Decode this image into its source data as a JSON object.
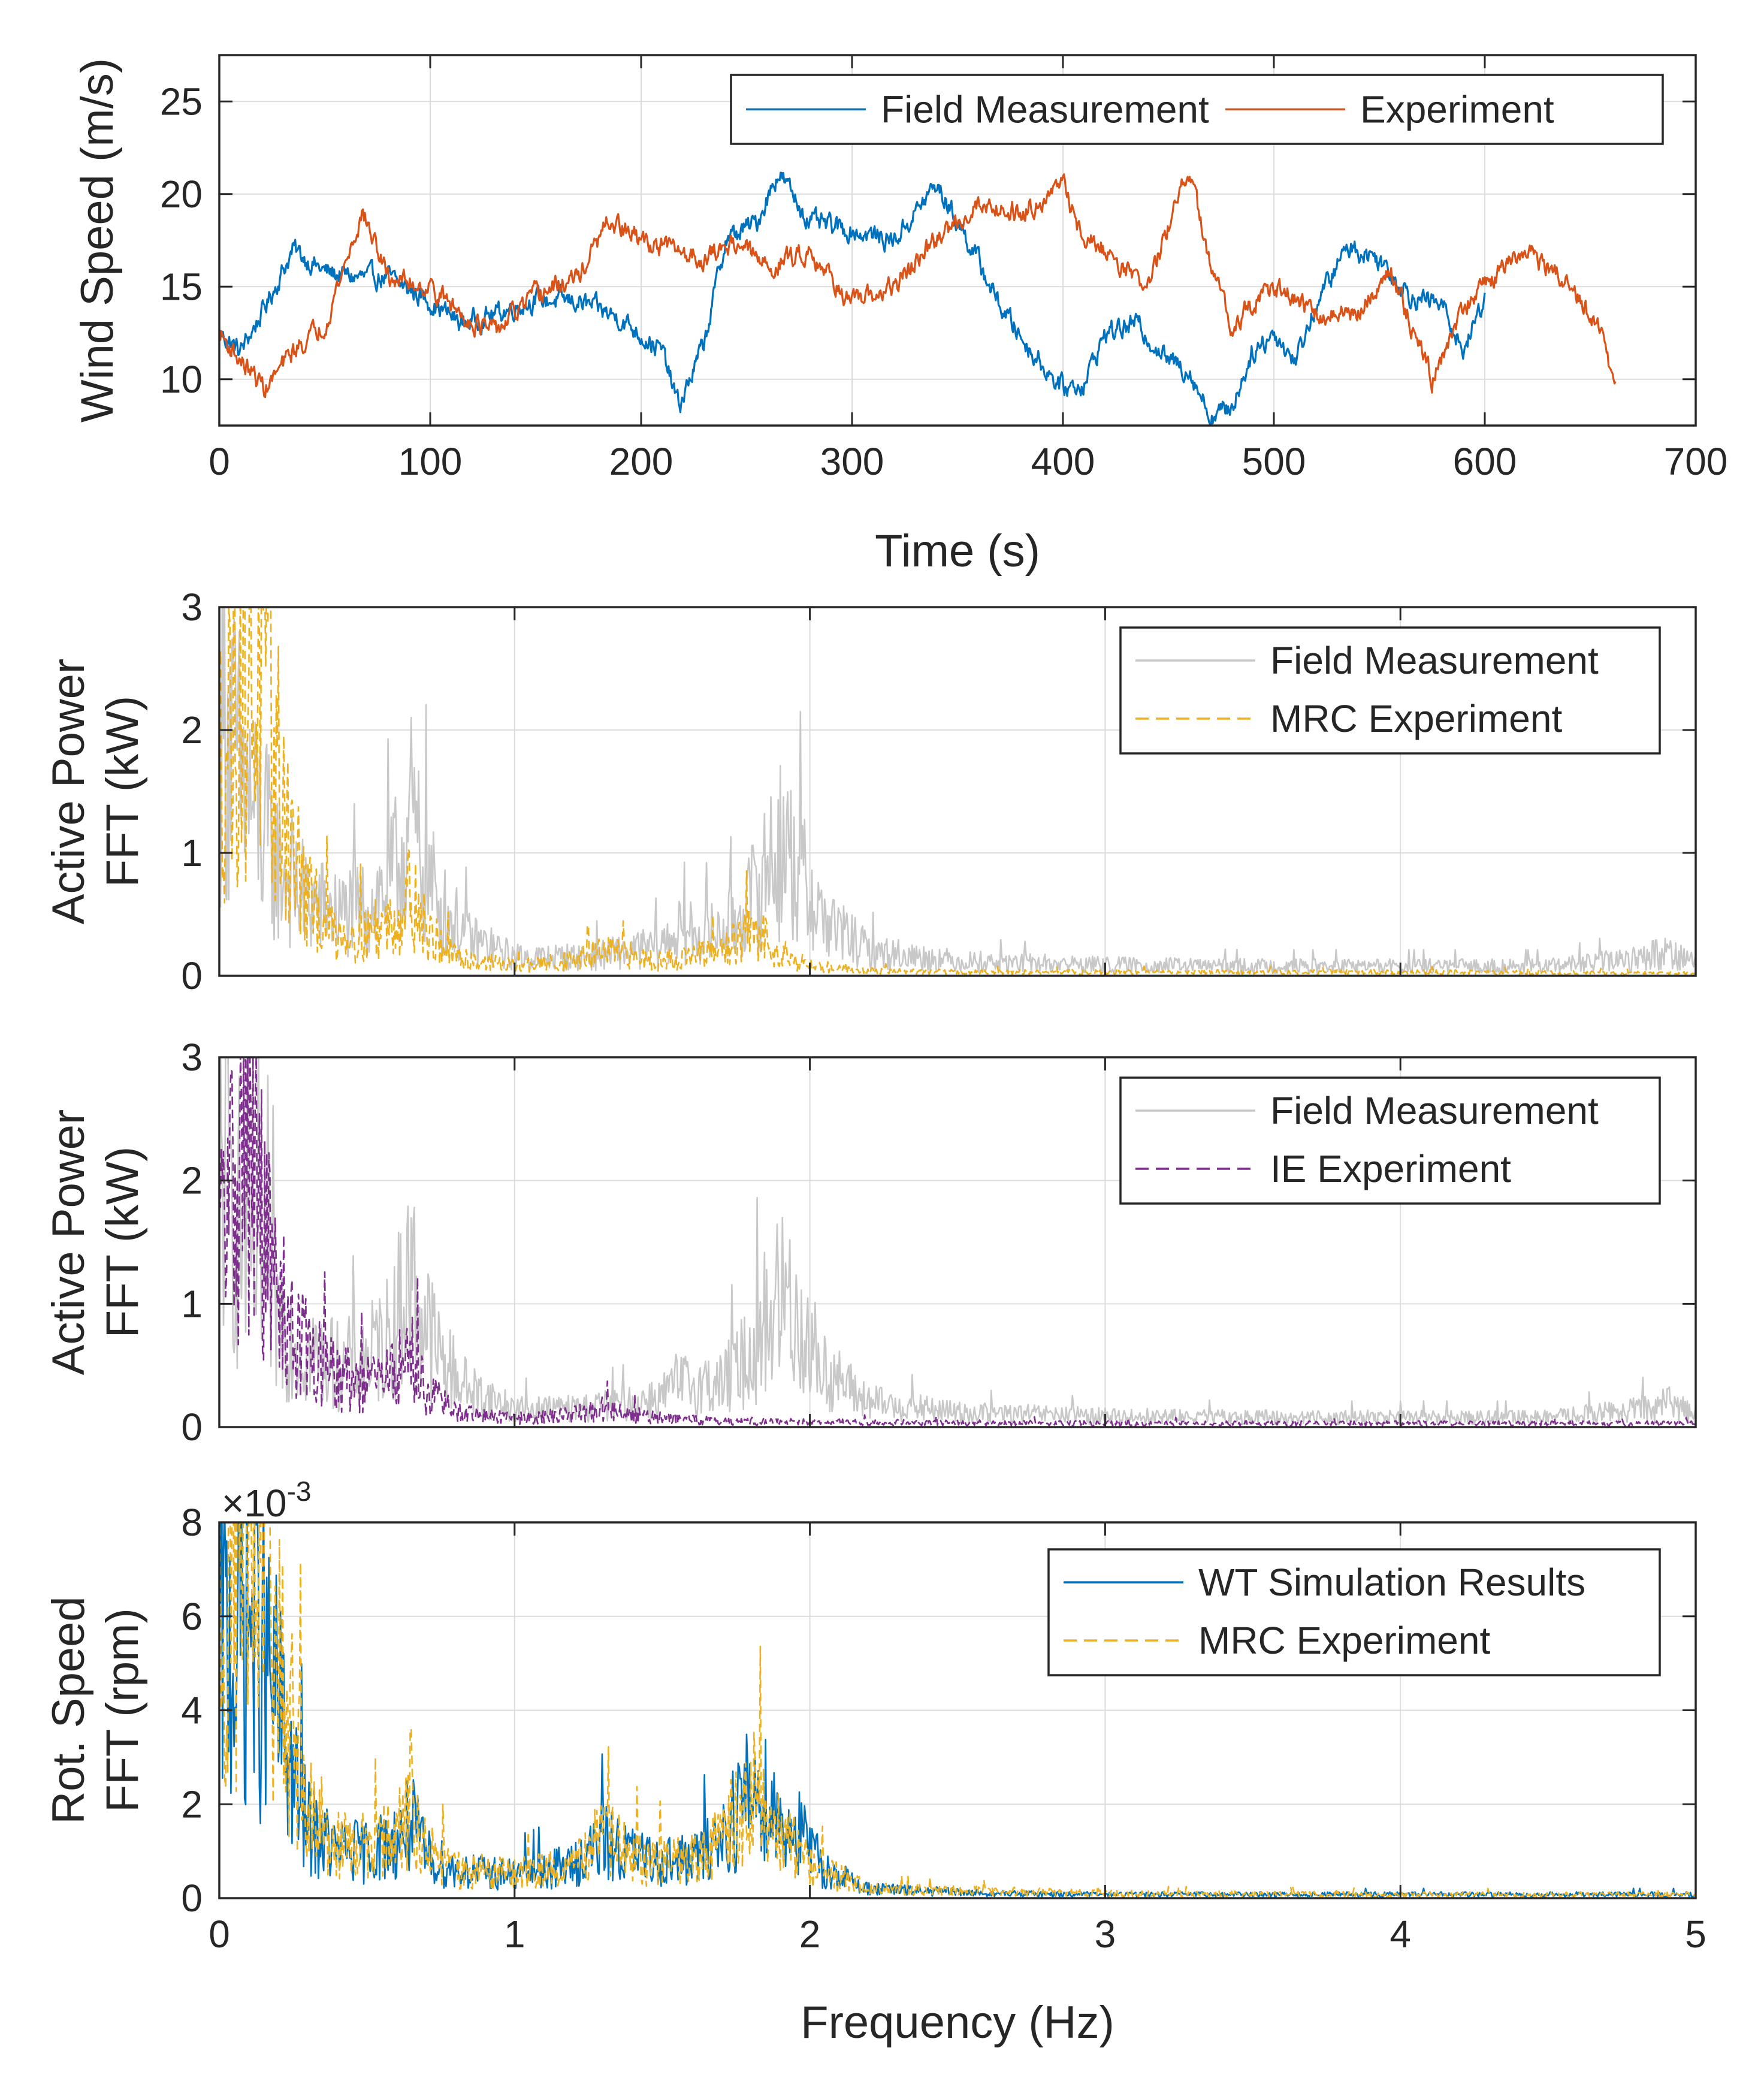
{
  "colors": {
    "blue": "#0072BD",
    "orange": "#D95319",
    "yellow": "#EDB120",
    "purple": "#7E2F8E",
    "gray": "#C8C8C8",
    "axis": "#262626"
  },
  "chart_data": [
    {
      "type": "line",
      "id": "wind",
      "xlabel": "Time (s)",
      "ylabel": [
        "Wind Speed (m/s)"
      ],
      "xlim": [
        0,
        700
      ],
      "ylim": [
        7.5,
        27.5
      ],
      "xticks": [
        0,
        100,
        200,
        300,
        400,
        500,
        600,
        700
      ],
      "yticks": [
        10,
        15,
        20,
        25
      ],
      "grid": true,
      "legend": {
        "placement": "top-right",
        "layout": "horizontal"
      },
      "series": [
        {
          "name": "Field Measurement",
          "color": "blue",
          "style": "solid",
          "noise": 0.45,
          "x": [
            0,
            10,
            20,
            35,
            50,
            65,
            80,
            100,
            115,
            130,
            150,
            170,
            190,
            210,
            218,
            230,
            240,
            255,
            265,
            280,
            300,
            320,
            340,
            355,
            370,
            385,
            400,
            410,
            420,
            435,
            450,
            460,
            470,
            480,
            490,
            500,
            510,
            520,
            535,
            550,
            565,
            580,
            590,
            600
          ],
          "y": [
            12.5,
            11.5,
            13.5,
            17.0,
            15.8,
            15.5,
            15.5,
            14.2,
            13.0,
            13.5,
            14.3,
            14.2,
            13.3,
            11.5,
            8.5,
            12.0,
            17.5,
            18.5,
            21.2,
            18.5,
            18.0,
            17.5,
            20.5,
            17.5,
            14.0,
            11.5,
            9.5,
            9.8,
            12.5,
            13.0,
            11.0,
            10.5,
            8.0,
            8.5,
            11.5,
            12.5,
            11.0,
            14.0,
            17.2,
            16.5,
            14.5,
            14.0,
            11.5,
            14.5
          ]
        },
        {
          "name": "Experiment",
          "color": "orange",
          "style": "solid",
          "noise": 0.45,
          "x": [
            0,
            10,
            22,
            35,
            50,
            68,
            80,
            100,
            115,
            130,
            150,
            170,
            185,
            200,
            215,
            230,
            245,
            260,
            280,
            300,
            320,
            340,
            360,
            380,
            400,
            410,
            420,
            440,
            460,
            470,
            480,
            500,
            520,
            540,
            555,
            575,
            590,
            605,
            620,
            640,
            655,
            662
          ],
          "y": [
            12.5,
            11.0,
            9.5,
            11.5,
            13.0,
            19.0,
            15.5,
            15.0,
            13.5,
            12.5,
            14.5,
            15.5,
            18.5,
            17.5,
            17.0,
            16.5,
            17.5,
            16.0,
            17.0,
            14.0,
            15.0,
            17.5,
            19.5,
            19.0,
            20.5,
            17.5,
            17.0,
            15.0,
            21.3,
            16.0,
            13.0,
            15.0,
            13.5,
            13.5,
            16.0,
            10.0,
            14.0,
            15.5,
            17.0,
            15.0,
            12.5,
            9.5
          ]
        }
      ]
    },
    {
      "type": "line",
      "id": "power_mrc",
      "xlabel": "",
      "ylabel": [
        "Active Power",
        "FFT (kW)"
      ],
      "xlim": [
        0,
        5
      ],
      "ylim": [
        0,
        3
      ],
      "xticks": [
        0,
        1,
        2,
        3,
        4,
        5
      ],
      "show_xtick_labels": false,
      "yticks": [
        0,
        1,
        2,
        3
      ],
      "grid": true,
      "legend": {
        "placement": "top-right",
        "layout": "vertical"
      },
      "series": [
        {
          "name": "Field Measurement",
          "color": "gray",
          "style": "solid",
          "noise": 0.75,
          "x": [
            0,
            0.05,
            0.12,
            0.2,
            0.3,
            0.4,
            0.5,
            0.58,
            0.62,
            0.65,
            0.68,
            0.75,
            0.85,
            1.0,
            1.2,
            1.4,
            1.5,
            1.55,
            1.7,
            1.8,
            1.88,
            1.92,
            1.96,
            2.05,
            2.2,
            2.5,
            3.0,
            3.5,
            4.0,
            4.5,
            4.8,
            4.9,
            5.0
          ],
          "y": [
            2.2,
            1.8,
            1.3,
            0.9,
            0.6,
            0.5,
            0.55,
            0.75,
            1.0,
            1.25,
            0.95,
            0.55,
            0.3,
            0.15,
            0.15,
            0.2,
            0.25,
            0.35,
            0.35,
            0.6,
            1.0,
            1.05,
            0.85,
            0.45,
            0.2,
            0.12,
            0.09,
            0.08,
            0.08,
            0.08,
            0.14,
            0.2,
            0.12
          ]
        },
        {
          "name": "MRC Experiment",
          "color": "yellow",
          "style": "dashed",
          "noise": 0.7,
          "x": [
            0,
            0.05,
            0.1,
            0.15,
            0.2,
            0.25,
            0.3,
            0.4,
            0.5,
            0.6,
            0.65,
            0.7,
            0.8,
            1.0,
            1.2,
            1.3,
            1.5,
            1.7,
            1.8,
            1.85,
            1.9,
            2.0,
            2.2,
            2.5,
            3.0,
            4.0,
            5.0
          ],
          "y": [
            1.8,
            2.2,
            2.5,
            2.2,
            1.6,
            1.0,
            0.6,
            0.35,
            0.35,
            0.45,
            0.7,
            0.35,
            0.15,
            0.08,
            0.12,
            0.2,
            0.12,
            0.2,
            0.35,
            0.3,
            0.2,
            0.08,
            0.04,
            0.03,
            0.03,
            0.03,
            0.02
          ]
        }
      ]
    },
    {
      "type": "line",
      "id": "power_ie",
      "xlabel": "",
      "ylabel": [
        "Active Power",
        "FFT (kW)"
      ],
      "xlim": [
        0,
        5
      ],
      "ylim": [
        0,
        3
      ],
      "xticks": [
        0,
        1,
        2,
        3,
        4,
        5
      ],
      "show_xtick_labels": false,
      "yticks": [
        0,
        1,
        2,
        3
      ],
      "grid": true,
      "legend": {
        "placement": "top-right",
        "layout": "vertical"
      },
      "series": [
        {
          "name": "Field Measurement",
          "color": "gray",
          "style": "solid",
          "noise": 0.75,
          "x": [
            0,
            0.05,
            0.12,
            0.2,
            0.3,
            0.4,
            0.5,
            0.58,
            0.62,
            0.65,
            0.68,
            0.75,
            0.85,
            1.0,
            1.2,
            1.4,
            1.5,
            1.55,
            1.7,
            1.8,
            1.88,
            1.92,
            1.96,
            2.05,
            2.2,
            2.5,
            3.0,
            3.5,
            4.0,
            4.5,
            4.8,
            4.9,
            5.0
          ],
          "y": [
            2.2,
            1.8,
            1.3,
            0.9,
            0.6,
            0.5,
            0.55,
            0.75,
            1.0,
            1.25,
            0.95,
            0.55,
            0.3,
            0.15,
            0.15,
            0.2,
            0.25,
            0.35,
            0.35,
            0.6,
            1.0,
            1.05,
            0.85,
            0.45,
            0.2,
            0.12,
            0.09,
            0.08,
            0.08,
            0.08,
            0.14,
            0.2,
            0.12
          ]
        },
        {
          "name": "IE Experiment",
          "color": "purple",
          "style": "dashed",
          "noise": 0.7,
          "x": [
            0,
            0.05,
            0.1,
            0.15,
            0.2,
            0.3,
            0.4,
            0.5,
            0.6,
            0.65,
            0.7,
            0.8,
            1.0,
            1.2,
            1.3,
            1.45,
            1.7,
            2.0,
            3.0,
            4.0,
            5.0
          ],
          "y": [
            1.5,
            2.0,
            2.2,
            1.6,
            1.0,
            0.6,
            0.4,
            0.35,
            0.45,
            0.6,
            0.3,
            0.12,
            0.07,
            0.1,
            0.15,
            0.08,
            0.05,
            0.04,
            0.03,
            0.03,
            0.03
          ]
        }
      ]
    },
    {
      "type": "line",
      "id": "rotspeed",
      "xlabel": "Frequency (Hz)",
      "ylabel": [
        "Rot. Speed",
        "FFT (rpm)"
      ],
      "exponent_label": "×10",
      "exponent_power": "-3",
      "xlim": [
        0,
        5
      ],
      "ylim": [
        0,
        8
      ],
      "xticks": [
        0,
        1,
        2,
        3,
        4,
        5
      ],
      "yticks": [
        0,
        2,
        4,
        6,
        8
      ],
      "grid": true,
      "legend": {
        "placement": "top-right",
        "layout": "vertical"
      },
      "series": [
        {
          "name": "WT Simulation Results",
          "color": "blue",
          "style": "solid",
          "noise": 0.7,
          "x": [
            0,
            0.05,
            0.1,
            0.15,
            0.2,
            0.25,
            0.3,
            0.4,
            0.5,
            0.6,
            0.65,
            0.7,
            0.8,
            1.0,
            1.2,
            1.3,
            1.45,
            1.6,
            1.7,
            1.8,
            1.85,
            1.9,
            1.95,
            2.05,
            2.2,
            2.6,
            3.0,
            4.0,
            5.0
          ],
          "y": [
            5.5,
            5.5,
            6.0,
            5.0,
            4.0,
            2.5,
            1.5,
            1.0,
            1.0,
            1.2,
            1.6,
            0.9,
            0.6,
            0.5,
            0.7,
            1.2,
            0.8,
            0.8,
            1.3,
            2.3,
            2.2,
            1.6,
            1.5,
            0.6,
            0.2,
            0.1,
            0.08,
            0.08,
            0.08
          ]
        },
        {
          "name": "MRC Experiment",
          "color": "yellow",
          "style": "dashed",
          "noise": 0.7,
          "x": [
            0,
            0.05,
            0.1,
            0.15,
            0.2,
            0.25,
            0.3,
            0.4,
            0.5,
            0.6,
            0.65,
            0.7,
            0.8,
            1.0,
            1.2,
            1.3,
            1.45,
            1.6,
            1.7,
            1.8,
            1.85,
            1.9,
            2.0,
            2.2,
            2.6,
            3.0,
            4.0,
            5.0
          ],
          "y": [
            6.5,
            7.0,
            7.5,
            6.5,
            5.0,
            3.5,
            2.0,
            1.2,
            1.1,
            1.3,
            2.2,
            1.0,
            0.6,
            0.5,
            0.7,
            1.3,
            0.8,
            0.8,
            1.2,
            2.2,
            2.0,
            1.4,
            0.7,
            0.2,
            0.15,
            0.1,
            0.08,
            0.08
          ]
        }
      ]
    }
  ]
}
